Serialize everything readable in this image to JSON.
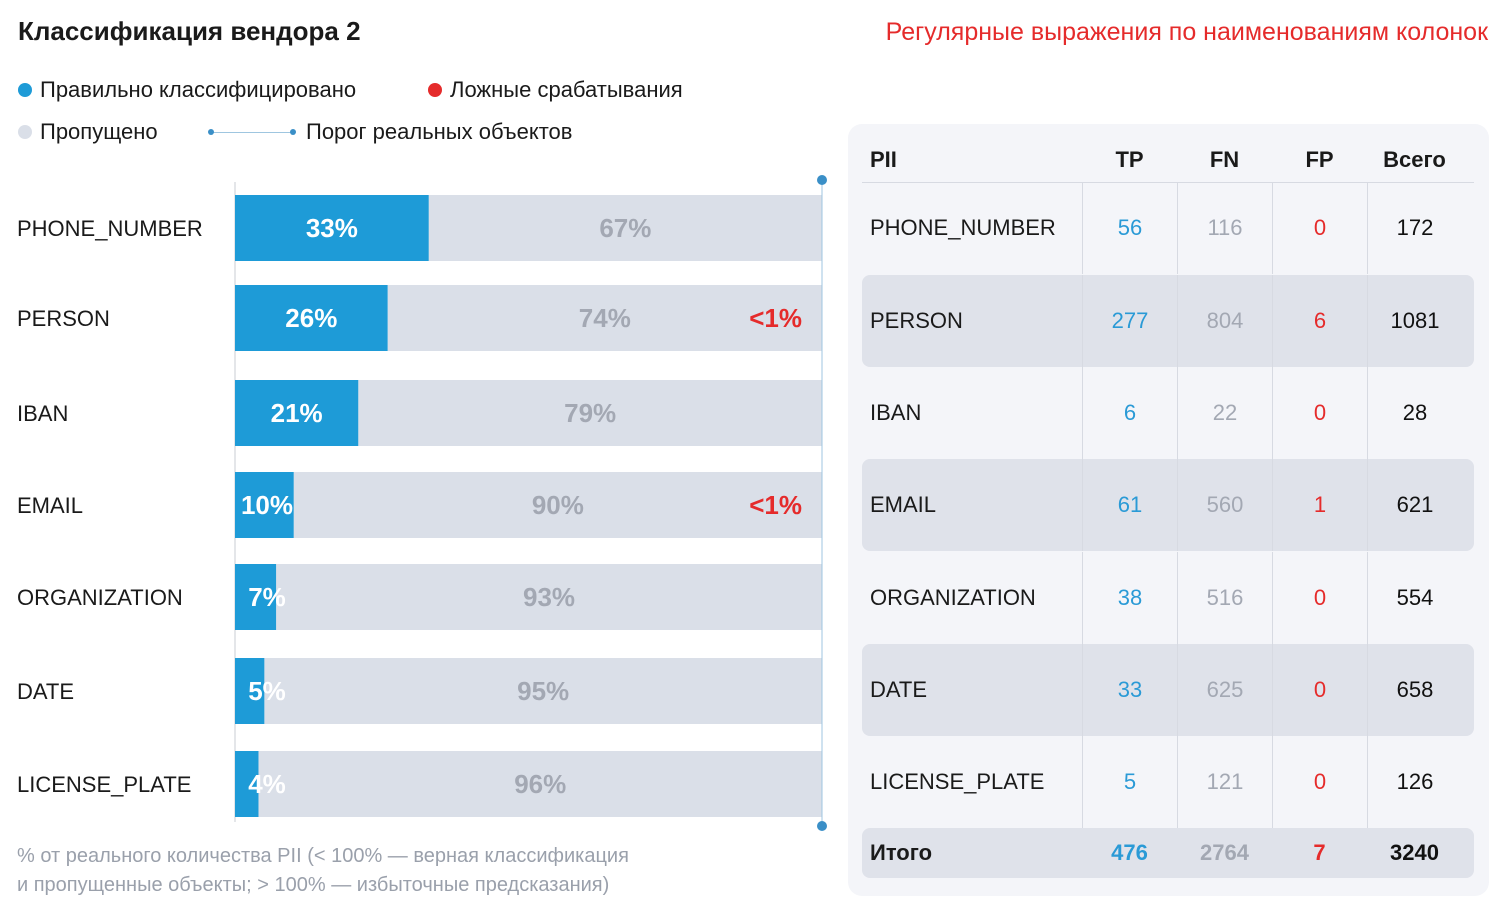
{
  "title": "Классификация вендора 2",
  "subtitle": "Регулярные выражения по наименованиям колонок",
  "legend": {
    "tp": "Правильно классифицировано",
    "fp": "Ложные срабатывания",
    "fn": "Пропущено",
    "threshold": "Порог реальных объектов"
  },
  "colors": {
    "tp": "#1e9bd7",
    "fn": "#dadfe8",
    "fp": "#e52b2b",
    "fn_text": "#a3a8b3",
    "threshold": "#3a8fc7"
  },
  "chart_data": {
    "type": "bar",
    "orientation": "horizontal",
    "stacked": true,
    "categories": [
      "PHONE_NUMBER",
      "PERSON",
      "IBAN",
      "EMAIL",
      "ORGANIZATION",
      "DATE",
      "LICENSE_PLATE"
    ],
    "series": [
      {
        "name": "Правильно классифицировано",
        "values": [
          33,
          26,
          21,
          10,
          7,
          5,
          4
        ],
        "labels": [
          "33%",
          "26%",
          "21%",
          "10%",
          "7%",
          "5%",
          "4%"
        ]
      },
      {
        "name": "Пропущено",
        "values": [
          67,
          74,
          79,
          90,
          93,
          95,
          96
        ],
        "labels": [
          "67%",
          "74%",
          "79%",
          "90%",
          "93%",
          "95%",
          "96%"
        ]
      },
      {
        "name": "Ложные срабатывания",
        "values": [
          0,
          0.6,
          0,
          0.2,
          0,
          0,
          0
        ],
        "labels": [
          "",
          "<1%",
          "",
          "<1%",
          "",
          "",
          ""
        ]
      }
    ],
    "threshold": 100,
    "xlim": [
      0,
      100
    ]
  },
  "footnote": [
    "% от реального количества PII (< 100% — верная классификация",
    "и пропущенные объекты; > 100% — избыточные предсказания)"
  ],
  "table": {
    "headers": [
      "PII",
      "TP",
      "FN",
      "FP",
      "Всего"
    ],
    "rows": [
      {
        "name": "PHONE_NUMBER",
        "tp": "56",
        "fn": "116",
        "fp": "0",
        "total": "172"
      },
      {
        "name": "PERSON",
        "tp": "277",
        "fn": "804",
        "fp": "6",
        "total": "1081"
      },
      {
        "name": "IBAN",
        "tp": "6",
        "fn": "22",
        "fp": "0",
        "total": "28"
      },
      {
        "name": "EMAIL",
        "tp": "61",
        "fn": "560",
        "fp": "1",
        "total": "621"
      },
      {
        "name": "ORGANIZATION",
        "tp": "38",
        "fn": "516",
        "fp": "0",
        "total": "554"
      },
      {
        "name": "DATE",
        "tp": "33",
        "fn": "625",
        "fp": "0",
        "total": "658"
      },
      {
        "name": "LICENSE_PLATE",
        "tp": "5",
        "fn": "121",
        "fp": "0",
        "total": "126"
      }
    ],
    "total": {
      "name": "Итого",
      "tp": "476",
      "fn": "2764",
      "fp": "7",
      "total": "3240"
    }
  }
}
